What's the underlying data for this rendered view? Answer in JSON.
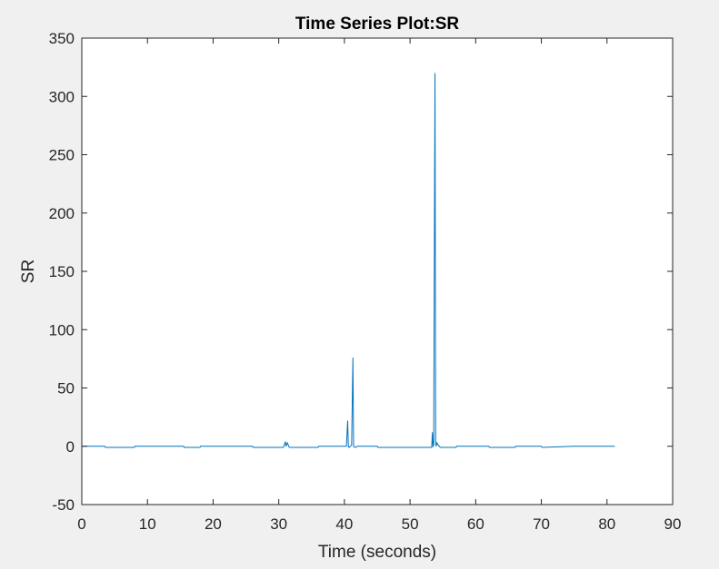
{
  "chart_data": {
    "type": "line",
    "title": "Time Series Plot:SR",
    "xlabel": "Time (seconds)",
    "ylabel": "SR",
    "xlim": [
      0,
      90
    ],
    "ylim": [
      -50,
      350
    ],
    "xticks": [
      0,
      10,
      20,
      30,
      40,
      50,
      60,
      70,
      80,
      90
    ],
    "yticks": [
      -50,
      0,
      50,
      100,
      150,
      200,
      250,
      300,
      350
    ],
    "grid": false,
    "legend": "none",
    "colors": {
      "series": "#0072bd",
      "axes": "#262626",
      "plot_background": "#ffffff",
      "figure_background": "#f0f0f0"
    },
    "series": [
      {
        "x": [
          0,
          3.5,
          3.6,
          8.0,
          8.1,
          12.0,
          15.5,
          15.6,
          18.0,
          18.1,
          26.0,
          26.1,
          30.7,
          30.9,
          31.0,
          31.1,
          31.3,
          31.6,
          36.0,
          36.1,
          40.3,
          40.5,
          40.6,
          40.7,
          40.9,
          41.1,
          41.3,
          41.4,
          41.6,
          42.0,
          45.0,
          45.1,
          53.3,
          53.4,
          53.5,
          53.6,
          53.8,
          53.9,
          54.0,
          54.1,
          54.3,
          54.6,
          57.0,
          57.1,
          62.0,
          62.1,
          66.0,
          66.1,
          70.0,
          70.1,
          75.0,
          81.2
        ],
        "y": [
          0,
          0,
          -1,
          -1,
          0,
          0,
          0,
          -1,
          -1,
          0,
          0,
          -1,
          -1,
          2,
          4,
          0,
          3,
          -1,
          -1,
          0,
          0,
          22,
          0,
          -1,
          0,
          1,
          76,
          0,
          -1,
          0,
          0,
          -1,
          -1,
          12,
          0,
          1,
          320,
          2,
          0,
          3,
          1,
          -1,
          -1,
          0,
          0,
          -1,
          -1,
          0,
          0,
          -1,
          0,
          0
        ]
      }
    ]
  }
}
